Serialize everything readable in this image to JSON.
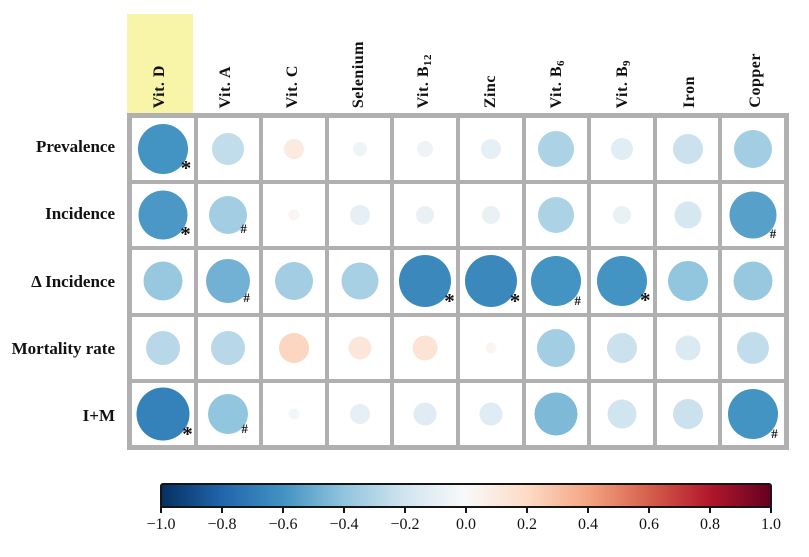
{
  "chart_data": {
    "type": "heatmap",
    "subtype": "correlation-bubble-matrix",
    "title": "",
    "columns": [
      {
        "label": "Vit. D",
        "sub": "",
        "highlight": true
      },
      {
        "label": "Vit. A",
        "sub": ""
      },
      {
        "label": "Vit. C",
        "sub": ""
      },
      {
        "label": "Selenium",
        "sub": ""
      },
      {
        "label": "Vit. B",
        "sub": "12"
      },
      {
        "label": "Zinc",
        "sub": ""
      },
      {
        "label": "Vit. B",
        "sub": "6"
      },
      {
        "label": "Vit. B",
        "sub": "9"
      },
      {
        "label": "Iron",
        "sub": ""
      },
      {
        "label": "Copper",
        "sub": ""
      }
    ],
    "rows": [
      "Prevalence",
      "Incidence",
      "Δ Incidence",
      "Mortality rate",
      "I+M"
    ],
    "series": [
      {
        "name": "Prevalence",
        "values": [
          -0.6,
          -0.25,
          0.1,
          -0.05,
          -0.06,
          -0.1,
          -0.32,
          -0.12,
          -0.22,
          -0.35
        ],
        "markers": [
          "*",
          "",
          "",
          "",
          "",
          "",
          "",
          "",
          "",
          ""
        ]
      },
      {
        "name": "Incidence",
        "values": [
          -0.58,
          -0.35,
          0.03,
          -0.1,
          -0.08,
          -0.08,
          -0.32,
          -0.08,
          -0.18,
          -0.55
        ],
        "markers": [
          "*",
          "#",
          "",
          "",
          "",
          "",
          "",
          "",
          "",
          "#"
        ]
      },
      {
        "name": "Δ Incidence",
        "values": [
          -0.38,
          -0.48,
          -0.35,
          -0.33,
          -0.65,
          -0.65,
          -0.6,
          -0.6,
          -0.4,
          -0.38
        ],
        "markers": [
          "",
          "#",
          "",
          "",
          "*",
          "*",
          "#",
          "*",
          "",
          ""
        ]
      },
      {
        "name": "Mortality rate",
        "values": [
          -0.28,
          -0.28,
          0.22,
          0.13,
          0.15,
          0.03,
          -0.35,
          -0.22,
          -0.15,
          -0.25
        ],
        "markers": [
          "",
          "",
          "",
          "",
          "",
          "",
          "",
          "",
          "",
          ""
        ]
      },
      {
        "name": "I+M",
        "values": [
          -0.68,
          -0.4,
          -0.03,
          -0.1,
          -0.13,
          -0.13,
          -0.45,
          -0.2,
          -0.22,
          -0.6
        ],
        "markers": [
          "*",
          "#",
          "",
          "",
          "",
          "",
          "",
          "",
          "",
          "#"
        ]
      }
    ],
    "value_range": [
      -1,
      1
    ],
    "significance_markers": [
      "*",
      "#"
    ],
    "colormap": [
      [
        -1.0,
        "#053061"
      ],
      [
        -0.8,
        "#2166ac"
      ],
      [
        -0.6,
        "#4393c3"
      ],
      [
        -0.4,
        "#92c5de"
      ],
      [
        -0.2,
        "#d1e5f0"
      ],
      [
        0.0,
        "#f9f9f9"
      ],
      [
        0.2,
        "#fddbc7"
      ],
      [
        0.4,
        "#f4a582"
      ],
      [
        0.6,
        "#d6604d"
      ],
      [
        0.8,
        "#b2182b"
      ],
      [
        1.0,
        "#67001f"
      ]
    ],
    "colorbar": {
      "ticks": [
        "−1.0",
        "−0.8",
        "−0.6",
        "−0.4",
        "−0.2",
        "0.0",
        "0.2",
        "0.4",
        "0.6",
        "0.8",
        "1.0"
      ],
      "min": -1,
      "max": 1,
      "position": "bottom"
    },
    "highlight_color": "#f8f4a8",
    "grid_color": "#b0b0b0"
  }
}
